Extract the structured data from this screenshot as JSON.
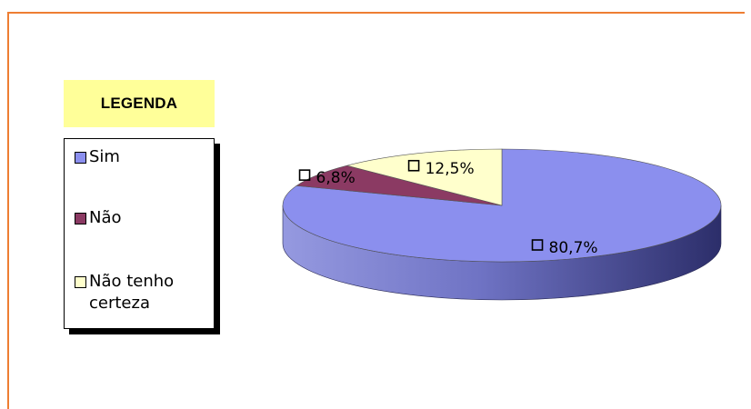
{
  "legend": {
    "title": "LEGENDA"
  },
  "chart_data": {
    "type": "pie",
    "style": "3d",
    "categories": [
      "Sim",
      "Não",
      "Não tenho certeza"
    ],
    "values": [
      80.7,
      6.8,
      12.5
    ],
    "labels": [
      "80,7%",
      "6,8%",
      "12,5%"
    ],
    "colors": [
      "#8b8fee",
      "#8b3a63",
      "#ffffcc"
    ],
    "legend_placement": "left",
    "title": "",
    "legend_title": "LEGENDA"
  }
}
